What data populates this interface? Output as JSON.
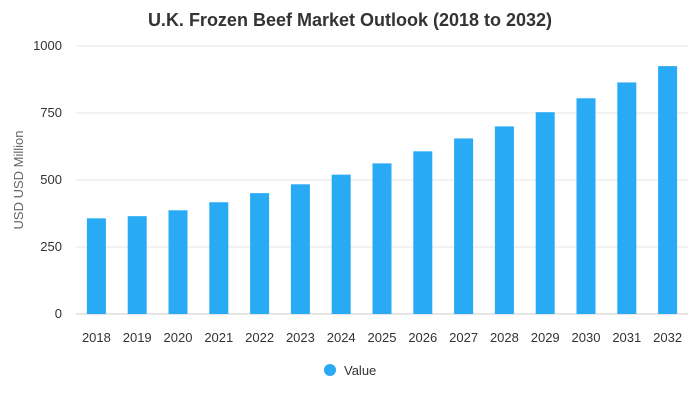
{
  "chart_data": {
    "type": "bar",
    "title": "U.K. Frozen Beef Market Outlook (2018 to 2032)",
    "ylabel": "USD USD Million",
    "xlabel": "",
    "categories": [
      "2018",
      "2019",
      "2020",
      "2021",
      "2022",
      "2023",
      "2024",
      "2025",
      "2026",
      "2027",
      "2028",
      "2029",
      "2030",
      "2031",
      "2032"
    ],
    "series": [
      {
        "name": "Value",
        "color": "#29aaf4",
        "values": [
          357,
          365,
          387,
          417,
          451,
          484,
          520,
          562,
          607,
          655,
          700,
          753,
          805,
          864,
          925
        ]
      }
    ],
    "ylim": [
      0,
      1000
    ],
    "yticks": [
      0,
      250,
      500,
      750,
      1000
    ],
    "grid": true,
    "legend_position": "bottom"
  }
}
